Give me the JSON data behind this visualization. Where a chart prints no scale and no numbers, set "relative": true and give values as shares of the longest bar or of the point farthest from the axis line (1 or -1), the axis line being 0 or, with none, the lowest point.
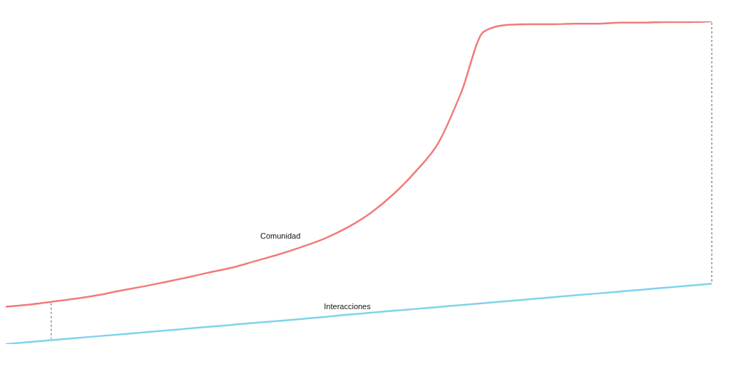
{
  "chart_data": {
    "type": "line",
    "relative": true,
    "categories": [
      null,
      null,
      null,
      null,
      null,
      null,
      null,
      null,
      null,
      null,
      null,
      null,
      null,
      null,
      null,
      null,
      null,
      null,
      null,
      null,
      null,
      null,
      null,
      null,
      null,
      null,
      null,
      null,
      null,
      null,
      null,
      null
    ],
    "series": [
      {
        "name": "Comunidad",
        "color": "#f27a7a",
        "values": [
          0.116,
          0.122,
          0.131,
          0.14,
          0.151,
          0.165,
          0.178,
          0.192,
          0.207,
          0.223,
          0.238,
          0.258,
          0.278,
          0.301,
          0.327,
          0.361,
          0.405,
          0.463,
          0.535,
          0.624,
          0.78,
          0.969,
          0.989,
          0.991,
          0.991,
          0.993,
          0.993,
          0.996,
          0.996,
          0.998,
          0.998,
          1
        ]
      },
      {
        "name": "Interacciones",
        "color": "#7fd3ec",
        "values": [
          0,
          0.006,
          0.012,
          0.018,
          0.024,
          0.03,
          0.036,
          0.042,
          0.048,
          0.054,
          0.06,
          0.066,
          0.072,
          0.078,
          0.084,
          0.091,
          0.097,
          0.103,
          0.109,
          0.115,
          0.121,
          0.127,
          0.133,
          0.139,
          0.145,
          0.151,
          0.157,
          0.163,
          0.169,
          0.175,
          0.181,
          0.187
        ]
      }
    ]
  }
}
